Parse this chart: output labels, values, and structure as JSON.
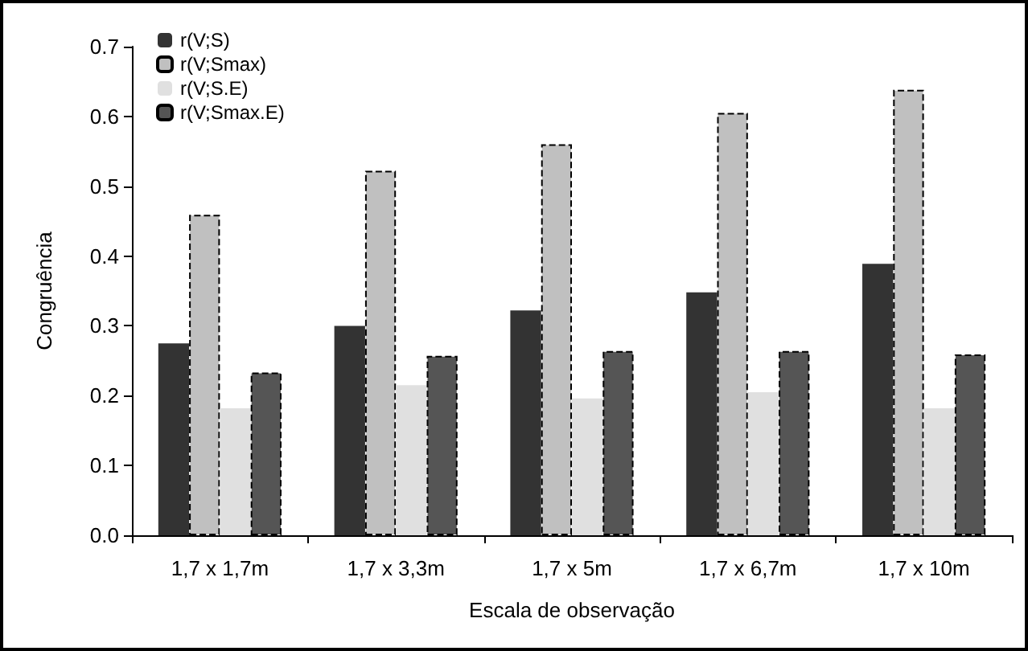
{
  "chart_data": {
    "type": "bar",
    "xlabel": "Escala de observação",
    "ylabel": "Congruência",
    "categories": [
      "1,7 x 1,7m",
      "1,7 x 3,3m",
      "1,7 x 5m",
      "1,7 x 6,7m",
      "1,7 x 10m"
    ],
    "series": [
      {
        "name": "r(V;S)",
        "color": "#333333",
        "values": [
          0.275,
          0.3,
          0.322,
          0.348,
          0.389
        ]
      },
      {
        "name": "r(V;Smax)",
        "color": "#c0c0c0",
        "line_style": "dashed",
        "values": [
          0.459,
          0.522,
          0.56,
          0.605,
          0.638
        ]
      },
      {
        "name": "r(V;S.E)",
        "color": "#e0e0e0",
        "values": [
          0.182,
          0.215,
          0.196,
          0.205,
          0.182
        ]
      },
      {
        "name": "r(V;Smax.E)",
        "color": "#555555",
        "line_style": "dashed",
        "values": [
          0.233,
          0.257,
          0.264,
          0.264,
          0.259
        ]
      }
    ],
    "ylim": [
      0,
      0.7
    ],
    "yticks": [
      {
        "value": 0,
        "label": "0.0"
      },
      {
        "value": 0.1,
        "label": "0.1"
      },
      {
        "value": 0.2,
        "label": "0.2"
      },
      {
        "value": 0.3,
        "label": "0.3"
      },
      {
        "value": 0.4,
        "label": "0.4"
      },
      {
        "value": 0.5,
        "label": "0.5"
      },
      {
        "value": 0.6,
        "label": "0.6"
      },
      {
        "value": 0.7,
        "label": "0.7"
      }
    ],
    "grid": false,
    "legend": "top left"
  }
}
